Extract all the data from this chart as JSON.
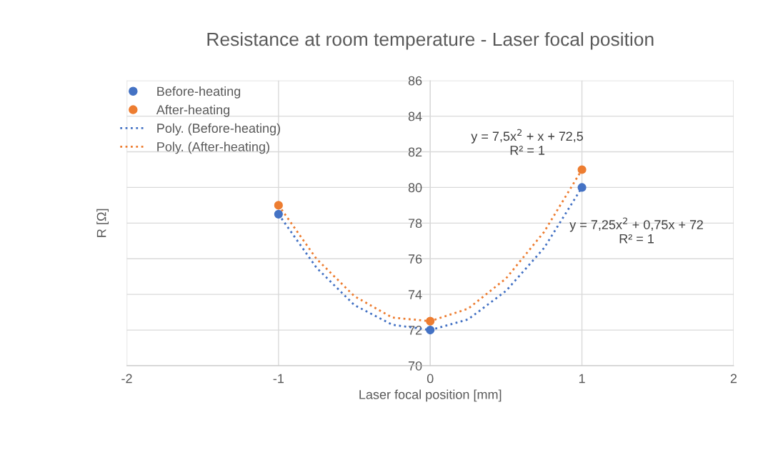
{
  "chart_data": {
    "type": "scatter",
    "title": "Resistance at room temperature - Laser focal position",
    "xlabel": "Laser focal position [mm]",
    "ylabel": "R [Ω]",
    "series": [
      {
        "name": "Before-heating",
        "color": "#4472c4",
        "marker": "circle",
        "x": [
          -1,
          0,
          1
        ],
        "values": [
          78.5,
          72,
          80
        ]
      },
      {
        "name": "After-heating",
        "color": "#ed7d31",
        "marker": "circle",
        "x": [
          -1,
          0,
          1
        ],
        "values": [
          79,
          72.5,
          81
        ]
      },
      {
        "name": "Poly. (Before-heating)",
        "type": "line",
        "color": "#4472c4",
        "line_style": "dotted",
        "marker": "none",
        "x": [
          -1,
          -0.75,
          -0.5,
          -0.25,
          0,
          0.25,
          0.5,
          0.75,
          1
        ],
        "values": [
          78.5,
          75.5,
          73.4,
          72.3,
          72,
          72.6,
          74.2,
          76.6,
          80
        ]
      },
      {
        "name": "Poly. (After-heating)",
        "type": "line",
        "color": "#ed7d31",
        "line_style": "dotted",
        "marker": "none",
        "x": [
          -1,
          -0.75,
          -0.5,
          -0.25,
          0,
          0.25,
          0.5,
          0.75,
          1
        ],
        "values": [
          79,
          76.0,
          73.9,
          72.7,
          72.5,
          73.2,
          74.9,
          77.5,
          81
        ]
      }
    ],
    "annotations": [
      "y = 7,5x$^{2}$ + x + 72,5\nR² = 1",
      "y = 7,25x$^{2}$ + 0,75x + 72\nR² = 1"
    ],
    "xlim": [
      -2,
      2
    ],
    "xticks": [
      -2,
      -1,
      0,
      1,
      2
    ],
    "ylim": [
      70,
      86
    ],
    "yticks": [
      70,
      72,
      74,
      76,
      78,
      80,
      82,
      84,
      86
    ],
    "grid": true,
    "legend": "top left"
  }
}
